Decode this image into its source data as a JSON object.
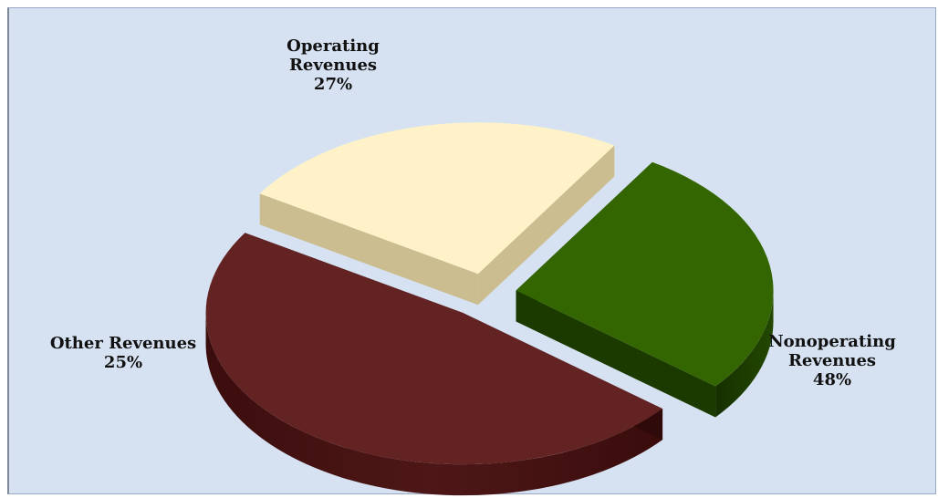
{
  "chart_data": {
    "type": "pie",
    "slices": [
      {
        "name": "Operating Revenues",
        "label_lines": [
          "Operating",
          "Revenues"
        ],
        "value": 27,
        "percent_label": "27%",
        "color": "#336600"
      },
      {
        "name": "Nonoperating Revenues",
        "label_lines": [
          "Nonoperating",
          "Revenues"
        ],
        "value": 48,
        "percent_label": "48%",
        "color": "#632323"
      },
      {
        "name": "Other Revenues",
        "label_lines": [
          "Other Revenues"
        ],
        "value": 25,
        "percent_label": "25%",
        "color": "#fff2c8"
      }
    ],
    "exploded": true,
    "three_d": true,
    "legend": "none",
    "background_color": "#d6e2f2"
  }
}
